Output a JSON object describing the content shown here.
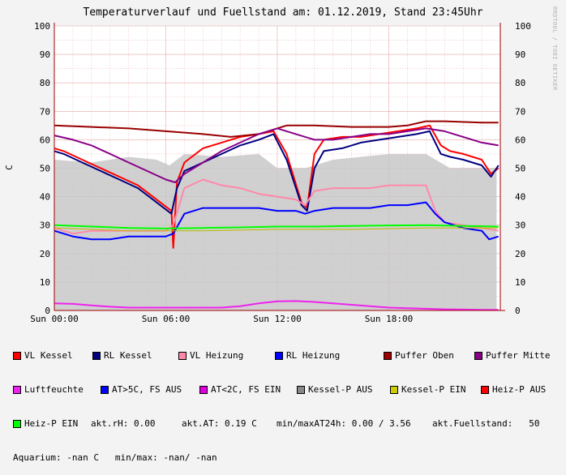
{
  "header": {
    "title": "Temperaturverlauf und Fuellstand am: 01.12.2019, Stand 23:45Uhr",
    "watermark": "RRDTOOL / TOBI OETIKER",
    "ylabel": "C"
  },
  "colors": {
    "background": "#f3f3f3",
    "plot_bg": "#ffffff",
    "grid": "#e8a8a8",
    "axis": "#a00000",
    "area": "#d4d4d4"
  },
  "chart_data": {
    "type": "line",
    "title": "Temperaturverlauf und Fuellstand am: 01.12.2019, Stand 23:45Uhr",
    "ylabel": "C",
    "xlabel": "",
    "ylim": [
      0,
      100
    ],
    "xlim_hours": [
      0,
      24
    ],
    "yticks": [
      0,
      10,
      20,
      30,
      40,
      50,
      60,
      70,
      80,
      90,
      100
    ],
    "xticks": [
      {
        "hour": 0,
        "label": "Sun 00:00"
      },
      {
        "hour": 6,
        "label": "Sun 06:00"
      },
      {
        "hour": 12,
        "label": "Sun 12:00"
      },
      {
        "hour": 18,
        "label": "Sun 18:00"
      }
    ],
    "grid": true,
    "area_series": {
      "name": "Kessel-P AUS",
      "color": "#c8c8c8",
      "points": [
        [
          0,
          53
        ],
        [
          2,
          52
        ],
        [
          4,
          54
        ],
        [
          5.5,
          53
        ],
        [
          6.2,
          51
        ],
        [
          7,
          55
        ],
        [
          9,
          54
        ],
        [
          11,
          55
        ],
        [
          12,
          50
        ],
        [
          13.5,
          50
        ],
        [
          15,
          53
        ],
        [
          18,
          55
        ],
        [
          20,
          55
        ],
        [
          21.3,
          50
        ],
        [
          23.8,
          50
        ]
      ]
    },
    "series": [
      {
        "name": "VL Kessel",
        "color": "#ff0000",
        "width": 2,
        "points": [
          [
            0,
            57
          ],
          [
            0.5,
            56
          ],
          [
            1.5,
            53
          ],
          [
            2.5,
            50
          ],
          [
            3.5,
            47
          ],
          [
            4.5,
            44
          ],
          [
            5.5,
            39
          ],
          [
            6.3,
            35
          ],
          [
            6.4,
            22
          ],
          [
            6.6,
            45
          ],
          [
            7,
            52
          ],
          [
            8,
            57
          ],
          [
            9,
            59
          ],
          [
            10,
            61
          ],
          [
            11,
            62
          ],
          [
            11.8,
            63
          ],
          [
            12.5,
            55
          ],
          [
            13.3,
            38
          ],
          [
            13.6,
            36
          ],
          [
            14,
            55
          ],
          [
            14.5,
            60
          ],
          [
            15.5,
            61
          ],
          [
            16.5,
            61
          ],
          [
            17.5,
            62
          ],
          [
            18.5,
            63
          ],
          [
            19.5,
            64
          ],
          [
            20.2,
            65
          ],
          [
            20.8,
            58
          ],
          [
            21.3,
            56
          ],
          [
            22,
            55
          ],
          [
            23,
            53
          ],
          [
            23.5,
            48
          ],
          [
            23.9,
            50
          ]
        ]
      },
      {
        "name": "RL Kessel",
        "color": "#000080",
        "width": 2,
        "points": [
          [
            0,
            56
          ],
          [
            0.5,
            55
          ],
          [
            1.5,
            52
          ],
          [
            2.5,
            49
          ],
          [
            3.5,
            46
          ],
          [
            4.5,
            43
          ],
          [
            5.5,
            38
          ],
          [
            6.3,
            34
          ],
          [
            6.6,
            43
          ],
          [
            7,
            49
          ],
          [
            8,
            52
          ],
          [
            9,
            55
          ],
          [
            10,
            58
          ],
          [
            11,
            60
          ],
          [
            11.8,
            62
          ],
          [
            12.5,
            53
          ],
          [
            13.3,
            37
          ],
          [
            13.6,
            35
          ],
          [
            14,
            50
          ],
          [
            14.5,
            56
          ],
          [
            15.5,
            57
          ],
          [
            16.5,
            59
          ],
          [
            17.5,
            60
          ],
          [
            18.5,
            61
          ],
          [
            19.5,
            62
          ],
          [
            20.2,
            63
          ],
          [
            20.8,
            55
          ],
          [
            21.3,
            54
          ],
          [
            22,
            53
          ],
          [
            23,
            51
          ],
          [
            23.5,
            47
          ],
          [
            23.9,
            51
          ]
        ]
      },
      {
        "name": "VL Heizung",
        "color": "#ff88aa",
        "width": 2,
        "points": [
          [
            0,
            29
          ],
          [
            1,
            27
          ],
          [
            2,
            28
          ],
          [
            3,
            28
          ],
          [
            4,
            28
          ],
          [
            5,
            28
          ],
          [
            6,
            28
          ],
          [
            6.4,
            30
          ],
          [
            7,
            43
          ],
          [
            8,
            46
          ],
          [
            9,
            44
          ],
          [
            10,
            43
          ],
          [
            11,
            41
          ],
          [
            12,
            40
          ],
          [
            13,
            39
          ],
          [
            13.5,
            37
          ],
          [
            14,
            42
          ],
          [
            15,
            43
          ],
          [
            16,
            43
          ],
          [
            17,
            43
          ],
          [
            18,
            44
          ],
          [
            19,
            44
          ],
          [
            20,
            44
          ],
          [
            20.5,
            35
          ],
          [
            21,
            31
          ],
          [
            22,
            30
          ],
          [
            23,
            29
          ],
          [
            23.9,
            28
          ]
        ]
      },
      {
        "name": "RL Heizung",
        "color": "#0000ff",
        "width": 2,
        "points": [
          [
            0,
            28
          ],
          [
            1,
            26
          ],
          [
            2,
            25
          ],
          [
            3,
            25
          ],
          [
            4,
            26
          ],
          [
            5,
            26
          ],
          [
            6,
            26
          ],
          [
            6.4,
            27
          ],
          [
            7,
            34
          ],
          [
            8,
            36
          ],
          [
            9,
            36
          ],
          [
            10,
            36
          ],
          [
            11,
            36
          ],
          [
            12,
            35
          ],
          [
            13,
            35
          ],
          [
            13.5,
            34
          ],
          [
            14,
            35
          ],
          [
            15,
            36
          ],
          [
            16,
            36
          ],
          [
            17,
            36
          ],
          [
            18,
            37
          ],
          [
            19,
            37
          ],
          [
            20,
            38
          ],
          [
            20.5,
            34
          ],
          [
            21,
            31
          ],
          [
            22,
            29
          ],
          [
            23,
            28
          ],
          [
            23.4,
            25
          ],
          [
            23.9,
            26
          ]
        ]
      },
      {
        "name": "Puffer Oben",
        "color": "#990000",
        "width": 2,
        "points": [
          [
            0,
            65
          ],
          [
            2,
            64.5
          ],
          [
            4,
            64
          ],
          [
            6,
            63
          ],
          [
            8,
            62
          ],
          [
            9.5,
            61
          ],
          [
            11,
            62
          ],
          [
            12.5,
            65
          ],
          [
            14,
            65
          ],
          [
            16,
            64.5
          ],
          [
            18,
            64.5
          ],
          [
            19,
            65
          ],
          [
            20,
            66.5
          ],
          [
            21,
            66.5
          ],
          [
            23,
            66
          ],
          [
            23.9,
            66
          ]
        ]
      },
      {
        "name": "Puffer Mitte",
        "color": "#880088",
        "width": 2,
        "points": [
          [
            0,
            61.5
          ],
          [
            1,
            60
          ],
          [
            2,
            58
          ],
          [
            3,
            55
          ],
          [
            4,
            52
          ],
          [
            5,
            49
          ],
          [
            6,
            46
          ],
          [
            6.5,
            45
          ],
          [
            7,
            48
          ],
          [
            8,
            52
          ],
          [
            9,
            56
          ],
          [
            10,
            59
          ],
          [
            11,
            62
          ],
          [
            12,
            64
          ],
          [
            13,
            62
          ],
          [
            14,
            60
          ],
          [
            15,
            60
          ],
          [
            16,
            61
          ],
          [
            17,
            62
          ],
          [
            18,
            62
          ],
          [
            19,
            63
          ],
          [
            20,
            64
          ],
          [
            21,
            63
          ],
          [
            22,
            61
          ],
          [
            23,
            59
          ],
          [
            23.9,
            58
          ]
        ]
      },
      {
        "name": "Luftfeuchte",
        "color": "#ee22ee",
        "width": 2,
        "points": [
          [
            0,
            2.5
          ],
          [
            1,
            2.3
          ],
          [
            2,
            1.8
          ],
          [
            3,
            1.3
          ],
          [
            4,
            1
          ],
          [
            5,
            1
          ],
          [
            6,
            1
          ],
          [
            7,
            1
          ],
          [
            8,
            1
          ],
          [
            9,
            1
          ],
          [
            10,
            1.5
          ],
          [
            11,
            2.5
          ],
          [
            12,
            3.2
          ],
          [
            13,
            3.3
          ],
          [
            14,
            3
          ],
          [
            15,
            2.5
          ],
          [
            16,
            2
          ],
          [
            17,
            1.5
          ],
          [
            18,
            1
          ],
          [
            19,
            0.8
          ],
          [
            20,
            0.6
          ],
          [
            21,
            0.4
          ],
          [
            22,
            0.3
          ],
          [
            23,
            0.2
          ],
          [
            23.9,
            0.2
          ]
        ]
      },
      {
        "name": "Heiz-P EIN",
        "color": "#00ff00",
        "width": 2,
        "points": [
          [
            0,
            30
          ],
          [
            2,
            29.5
          ],
          [
            4,
            29
          ],
          [
            6,
            28.8
          ],
          [
            8,
            29
          ],
          [
            10,
            29.2
          ],
          [
            12,
            29.5
          ],
          [
            14,
            29.5
          ],
          [
            16,
            29.7
          ],
          [
            18,
            29.9
          ],
          [
            20,
            30
          ],
          [
            22,
            29.7
          ],
          [
            23.9,
            29.5
          ]
        ]
      },
      {
        "name": "Kessel-P EIN",
        "color": "#bbbb00",
        "width": 1,
        "points": [
          [
            0,
            29
          ],
          [
            4,
            28
          ],
          [
            8,
            28
          ],
          [
            12,
            28.5
          ],
          [
            16,
            28.5
          ],
          [
            20,
            29
          ],
          [
            23.9,
            29
          ]
        ]
      }
    ]
  },
  "legend": {
    "rows": [
      [
        {
          "label": "VL Kessel",
          "color": "#ff0000"
        },
        {
          "label": "RL Kessel",
          "color": "#000080"
        },
        {
          "label": "VL Heizung",
          "color": "#ff88aa"
        },
        {
          "label": "RL Heizung",
          "color": "#0000ff"
        },
        {
          "label": "Puffer Oben",
          "color": "#990000"
        },
        {
          "label": "Puffer Mitte",
          "color": "#880088"
        }
      ],
      [
        {
          "label": "Luftfeuchte",
          "color": "#ee22ee"
        },
        {
          "label": "AT>5C, FS AUS",
          "color": "#0000ff"
        },
        {
          "label": "AT<2C, FS EIN",
          "color": "#dd00dd"
        },
        {
          "label": "Kessel-P AUS",
          "color": "#888888"
        },
        {
          "label": "Kessel-P EIN",
          "color": "#cccc00"
        },
        {
          "label": "Heiz-P AUS",
          "color": "#ff0000"
        }
      ]
    ],
    "row3_item": {
      "label": "Heiz-P EIN",
      "color": "#00ff00"
    },
    "stats": {
      "rh": "akt.rH: 0.00",
      "at": "akt.AT: 0.19 C",
      "minmax": "min/maxAT24h: 0.00 / 3.56",
      "fuellstand": "akt.Fuellstand:   50"
    },
    "aquarium": "Aquarium: -nan C   min/max: -nan/ -nan"
  }
}
